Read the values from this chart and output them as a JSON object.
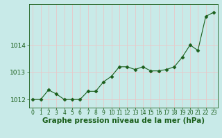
{
  "x": [
    0,
    1,
    2,
    3,
    4,
    5,
    6,
    7,
    8,
    9,
    10,
    11,
    12,
    13,
    14,
    15,
    16,
    17,
    18,
    19,
    20,
    21,
    22,
    23
  ],
  "y": [
    1012.0,
    1012.0,
    1012.35,
    1012.2,
    1012.0,
    1012.0,
    1012.0,
    1012.3,
    1012.3,
    1012.65,
    1012.85,
    1013.2,
    1013.2,
    1013.1,
    1013.2,
    1013.05,
    1013.05,
    1013.1,
    1013.2,
    1013.55,
    1014.0,
    1013.8,
    1015.05,
    1015.2
  ],
  "line_color": "#1a5e1a",
  "marker": "D",
  "marker_size": 2.5,
  "marker_color": "#1a5e1a",
  "bg_color": "#c8eae8",
  "grid_color": "#e8c8c8",
  "tick_color": "#1a5e1a",
  "label_color": "#1a5e1a",
  "xlabel": "Graphe pression niveau de la mer (hPa)",
  "xlabel_fontsize": 7.5,
  "ylabel_fontsize": 6.5,
  "tick_fontsize": 5.5,
  "ylim": [
    1011.7,
    1015.5
  ],
  "yticks": [
    1012,
    1013,
    1014
  ],
  "xticks": [
    0,
    1,
    2,
    3,
    4,
    5,
    6,
    7,
    8,
    9,
    10,
    11,
    12,
    13,
    14,
    15,
    16,
    17,
    18,
    19,
    20,
    21,
    22,
    23
  ],
  "xlim": [
    -0.5,
    23.5
  ]
}
